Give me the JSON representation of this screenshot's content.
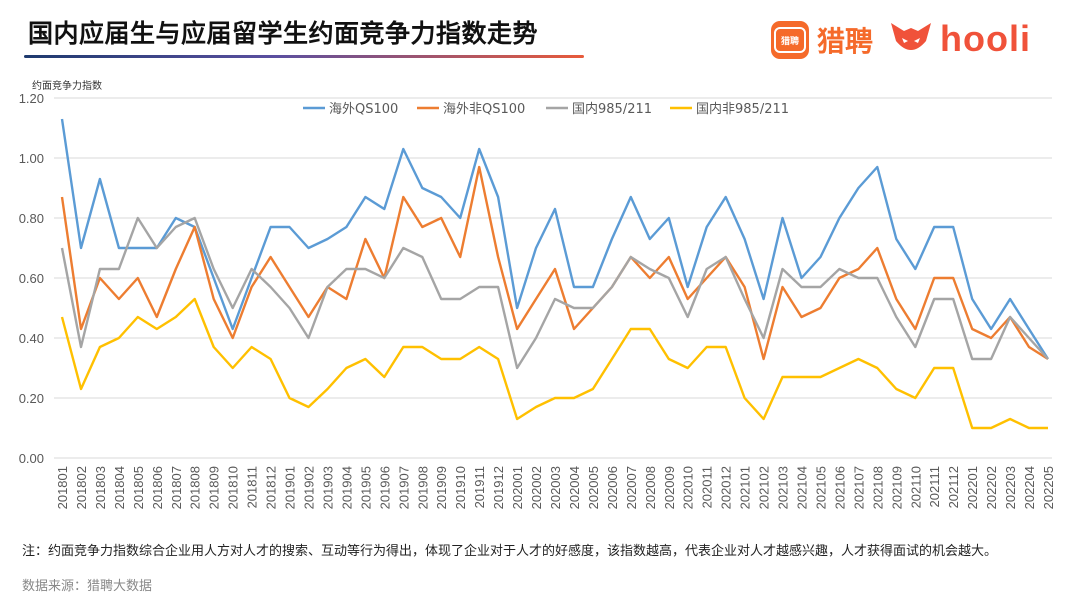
{
  "header": {
    "title": "国内应届生与应届留学生约面竞争力指数走势",
    "liepin_logo_mark": "猎聘",
    "liepin_logo_text": "猎聘",
    "hooli_logo_text": "hooli"
  },
  "footer": {
    "note": "注：约面竞争力指数综合企业用人方对人才的搜索、互动等行为得出，体现了企业对于人才的好感度，该指数越高，代表企业对人才越感兴趣，人才获得面试的机会越大。",
    "source": "数据来源：猎聘大数据"
  },
  "colors": {
    "series1": "#5b9bd5",
    "series2": "#ed7d31",
    "series3": "#a5a5a5",
    "series4": "#ffc000",
    "grid": "#d9d9d9",
    "axis_text": "#595959"
  },
  "chart_data": {
    "type": "line",
    "title": "国内应届生与应届留学生约面竞争力指数走势",
    "ylabel": "约面竞争力指数",
    "xlabel": "",
    "ylim": [
      0,
      1.2
    ],
    "yticks": [
      "0.00",
      "0.20",
      "0.40",
      "0.60",
      "0.80",
      "1.00",
      "1.20"
    ],
    "grid": true,
    "legend": "top-center",
    "x": [
      "201801",
      "201802",
      "201803",
      "201804",
      "201805",
      "201806",
      "201807",
      "201808",
      "201809",
      "201810",
      "201811",
      "201812",
      "201901",
      "201902",
      "201903",
      "201904",
      "201905",
      "201906",
      "201907",
      "201908",
      "201909",
      "201910",
      "201911",
      "201912",
      "202001",
      "202002",
      "202003",
      "202004",
      "202005",
      "202006",
      "202007",
      "202008",
      "202009",
      "202010",
      "202011",
      "202012",
      "202101",
      "202102",
      "202103",
      "202104",
      "202105",
      "202106",
      "202107",
      "202108",
      "202109",
      "202110",
      "202111",
      "202112",
      "202201",
      "202202",
      "202203",
      "202204",
      "202205"
    ],
    "series": [
      {
        "name": "海外QS100",
        "values": [
          1.13,
          0.7,
          0.93,
          0.7,
          0.7,
          0.7,
          0.8,
          0.77,
          0.6,
          0.43,
          0.6,
          0.77,
          0.77,
          0.7,
          0.73,
          0.77,
          0.87,
          0.83,
          1.03,
          0.9,
          0.87,
          0.8,
          1.03,
          0.87,
          0.5,
          0.7,
          0.83,
          0.57,
          0.57,
          0.73,
          0.87,
          0.73,
          0.8,
          0.57,
          0.77,
          0.87,
          0.73,
          0.53,
          0.8,
          0.6,
          0.67,
          0.8,
          0.9,
          0.97,
          0.73,
          0.63,
          0.77,
          0.77,
          0.53,
          0.43,
          0.53,
          0.43,
          0.33
        ]
      },
      {
        "name": "海外非QS100",
        "values": [
          0.87,
          0.43,
          0.6,
          0.53,
          0.6,
          0.47,
          0.63,
          0.77,
          0.53,
          0.4,
          0.57,
          0.67,
          0.57,
          0.47,
          0.57,
          0.53,
          0.73,
          0.6,
          0.87,
          0.77,
          0.8,
          0.67,
          0.97,
          0.67,
          0.43,
          0.53,
          0.63,
          0.43,
          0.5,
          0.57,
          0.67,
          0.6,
          0.67,
          0.53,
          0.6,
          0.67,
          0.57,
          0.33,
          0.57,
          0.47,
          0.5,
          0.6,
          0.63,
          0.7,
          0.53,
          0.43,
          0.6,
          0.6,
          0.43,
          0.4,
          0.47,
          0.37,
          0.33
        ]
      },
      {
        "name": "国内985/211",
        "values": [
          0.7,
          0.37,
          0.63,
          0.63,
          0.8,
          0.7,
          0.77,
          0.8,
          0.63,
          0.5,
          0.63,
          0.57,
          0.5,
          0.4,
          0.57,
          0.63,
          0.63,
          0.6,
          0.7,
          0.67,
          0.53,
          0.53,
          0.57,
          0.57,
          0.3,
          0.4,
          0.53,
          0.5,
          0.5,
          0.57,
          0.67,
          0.63,
          0.6,
          0.47,
          0.63,
          0.67,
          0.53,
          0.4,
          0.63,
          0.57,
          0.57,
          0.63,
          0.6,
          0.6,
          0.47,
          0.37,
          0.53,
          0.53,
          0.33,
          0.33,
          0.47,
          0.4,
          0.33
        ]
      },
      {
        "name": "国内非985/211",
        "values": [
          0.47,
          0.23,
          0.37,
          0.4,
          0.47,
          0.43,
          0.47,
          0.53,
          0.37,
          0.3,
          0.37,
          0.33,
          0.2,
          0.17,
          0.23,
          0.3,
          0.33,
          0.27,
          0.37,
          0.37,
          0.33,
          0.33,
          0.37,
          0.33,
          0.13,
          0.17,
          0.2,
          0.2,
          0.23,
          0.33,
          0.43,
          0.43,
          0.33,
          0.3,
          0.37,
          0.37,
          0.2,
          0.13,
          0.27,
          0.27,
          0.27,
          0.3,
          0.33,
          0.3,
          0.23,
          0.2,
          0.3,
          0.3,
          0.1,
          0.1,
          0.13,
          0.1,
          0.1
        ]
      }
    ]
  }
}
